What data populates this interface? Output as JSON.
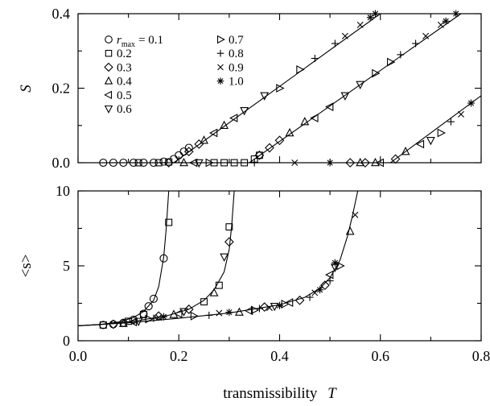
{
  "chart_data": [
    {
      "type": "scatter",
      "ylabel": "S",
      "ylim": [
        0,
        0.4
      ],
      "xlim": [
        0,
        0.8
      ],
      "yticks": [
        "0.0",
        "0.2",
        "0.4"
      ],
      "legend": {
        "title_prefix": "r",
        "title_sub": "max",
        "entries": [
          {
            "label": "= 0.1",
            "marker": "circle"
          },
          {
            "label": "0.2",
            "marker": "square"
          },
          {
            "label": "0.3",
            "marker": "diamond"
          },
          {
            "label": "0.4",
            "marker": "triangle-up"
          },
          {
            "label": "0.5",
            "marker": "triangle-left"
          },
          {
            "label": "0.6",
            "marker": "triangle-down"
          },
          {
            "label": "0.7",
            "marker": "triangle-right"
          },
          {
            "label": "0.8",
            "marker": "plus"
          },
          {
            "label": "0.9",
            "marker": "cross"
          },
          {
            "label": "1.0",
            "marker": "star"
          }
        ]
      },
      "curves": [
        {
          "x": [
            0.0,
            0.19,
            0.6
          ],
          "y": [
            0,
            0,
            0.4
          ]
        },
        {
          "x": [
            0.0,
            0.34,
            0.76
          ],
          "y": [
            0,
            0,
            0.4
          ]
        },
        {
          "x": [
            0.0,
            0.62,
            0.8
          ],
          "y": [
            0,
            0,
            0.18
          ]
        }
      ],
      "points": [
        {
          "m": "circle",
          "x": 0.05,
          "y": 0
        },
        {
          "m": "circle",
          "x": 0.07,
          "y": 0
        },
        {
          "m": "circle",
          "x": 0.09,
          "y": 0
        },
        {
          "m": "circle",
          "x": 0.11,
          "y": 0
        },
        {
          "m": "circle",
          "x": 0.13,
          "y": 0
        },
        {
          "m": "circle",
          "x": 0.15,
          "y": 0
        },
        {
          "m": "circle",
          "x": 0.17,
          "y": 0.003
        },
        {
          "m": "circle",
          "x": 0.19,
          "y": 0.01
        },
        {
          "m": "circle",
          "x": 0.2,
          "y": 0.02
        },
        {
          "m": "circle",
          "x": 0.21,
          "y": 0.03
        },
        {
          "m": "circle",
          "x": 0.22,
          "y": 0.04
        },
        {
          "m": "square",
          "x": 0.12,
          "y": 0
        },
        {
          "m": "square",
          "x": 0.16,
          "y": 0
        },
        {
          "m": "square",
          "x": 0.18,
          "y": 0.002
        },
        {
          "m": "square",
          "x": 0.27,
          "y": 0
        },
        {
          "m": "square",
          "x": 0.29,
          "y": 0
        },
        {
          "m": "square",
          "x": 0.31,
          "y": 0
        },
        {
          "m": "square",
          "x": 0.35,
          "y": 0.01
        },
        {
          "m": "square",
          "x": 0.36,
          "y": 0.02
        },
        {
          "m": "square",
          "x": 0.33,
          "y": 0
        },
        {
          "m": "diamond",
          "x": 0.18,
          "y": 0
        },
        {
          "m": "diamond",
          "x": 0.22,
          "y": 0.03
        },
        {
          "m": "diamond",
          "x": 0.24,
          "y": 0.05
        },
        {
          "m": "diamond",
          "x": 0.36,
          "y": 0.02
        },
        {
          "m": "diamond",
          "x": 0.38,
          "y": 0.04
        },
        {
          "m": "diamond",
          "x": 0.4,
          "y": 0.06
        },
        {
          "m": "diamond",
          "x": 0.54,
          "y": 0
        },
        {
          "m": "diamond",
          "x": 0.57,
          "y": 0
        },
        {
          "m": "diamond",
          "x": 0.63,
          "y": 0.01
        },
        {
          "m": "triangle-up",
          "x": 0.21,
          "y": 0
        },
        {
          "m": "triangle-up",
          "x": 0.25,
          "y": 0.06
        },
        {
          "m": "triangle-up",
          "x": 0.29,
          "y": 0.1
        },
        {
          "m": "triangle-up",
          "x": 0.42,
          "y": 0.08
        },
        {
          "m": "triangle-up",
          "x": 0.45,
          "y": 0.11
        },
        {
          "m": "triangle-up",
          "x": 0.56,
          "y": 0
        },
        {
          "m": "triangle-up",
          "x": 0.59,
          "y": 0
        },
        {
          "m": "triangle-up",
          "x": 0.65,
          "y": 0.03
        },
        {
          "m": "triangle-left",
          "x": 0.23,
          "y": 0
        },
        {
          "m": "triangle-left",
          "x": 0.27,
          "y": 0.08
        },
        {
          "m": "triangle-left",
          "x": 0.31,
          "y": 0.12
        },
        {
          "m": "triangle-left",
          "x": 0.47,
          "y": 0.12
        },
        {
          "m": "triangle-left",
          "x": 0.5,
          "y": 0.15
        },
        {
          "m": "triangle-left",
          "x": 0.6,
          "y": 0
        },
        {
          "m": "triangle-left",
          "x": 0.68,
          "y": 0.05
        },
        {
          "m": "triangle-down",
          "x": 0.24,
          "y": 0
        },
        {
          "m": "triangle-down",
          "x": 0.33,
          "y": 0.14
        },
        {
          "m": "triangle-down",
          "x": 0.37,
          "y": 0.18
        },
        {
          "m": "triangle-down",
          "x": 0.53,
          "y": 0.18
        },
        {
          "m": "triangle-down",
          "x": 0.56,
          "y": 0.21
        },
        {
          "m": "triangle-down",
          "x": 0.7,
          "y": 0.06
        },
        {
          "m": "triangle-right",
          "x": 0.26,
          "y": 0
        },
        {
          "m": "triangle-right",
          "x": 0.4,
          "y": 0.2
        },
        {
          "m": "triangle-right",
          "x": 0.44,
          "y": 0.25
        },
        {
          "m": "triangle-right",
          "x": 0.59,
          "y": 0.24
        },
        {
          "m": "triangle-right",
          "x": 0.62,
          "y": 0.27
        },
        {
          "m": "triangle-right",
          "x": 0.72,
          "y": 0.08
        },
        {
          "m": "plus",
          "x": 0.35,
          "y": 0
        },
        {
          "m": "plus",
          "x": 0.47,
          "y": 0.28
        },
        {
          "m": "plus",
          "x": 0.51,
          "y": 0.32
        },
        {
          "m": "plus",
          "x": 0.64,
          "y": 0.29
        },
        {
          "m": "plus",
          "x": 0.67,
          "y": 0.32
        },
        {
          "m": "plus",
          "x": 0.74,
          "y": 0.11
        },
        {
          "m": "cross",
          "x": 0.43,
          "y": 0
        },
        {
          "m": "cross",
          "x": 0.53,
          "y": 0.34
        },
        {
          "m": "cross",
          "x": 0.56,
          "y": 0.37
        },
        {
          "m": "cross",
          "x": 0.69,
          "y": 0.34
        },
        {
          "m": "cross",
          "x": 0.72,
          "y": 0.37
        },
        {
          "m": "cross",
          "x": 0.76,
          "y": 0.13
        },
        {
          "m": "star",
          "x": 0.5,
          "y": 0
        },
        {
          "m": "star",
          "x": 0.58,
          "y": 0.39
        },
        {
          "m": "star",
          "x": 0.59,
          "y": 0.4
        },
        {
          "m": "star",
          "x": 0.73,
          "y": 0.38
        },
        {
          "m": "star",
          "x": 0.75,
          "y": 0.4
        },
        {
          "m": "star",
          "x": 0.78,
          "y": 0.16
        }
      ]
    },
    {
      "type": "scatter",
      "ylabel": "<s>",
      "xlabel": "transmissibility",
      "xlabel_symbol": "T",
      "ylim": [
        0,
        10
      ],
      "xlim": [
        0,
        0.8
      ],
      "yticks": [
        "0",
        "5",
        "10"
      ],
      "xticks": [
        "0.0",
        "0.2",
        "0.4",
        "0.6",
        "0.8"
      ],
      "curves": [
        {
          "x": [
            0.0,
            0.04,
            0.08,
            0.11,
            0.13,
            0.15,
            0.16,
            0.17,
            0.175,
            0.18
          ],
          "y": [
            1.0,
            1.07,
            1.25,
            1.55,
            1.95,
            2.7,
            3.6,
            5.6,
            7.5,
            10
          ]
        },
        {
          "x": [
            0.0,
            0.06,
            0.12,
            0.18,
            0.22,
            0.25,
            0.27,
            0.29,
            0.3,
            0.305,
            0.31
          ],
          "y": [
            1.0,
            1.12,
            1.35,
            1.7,
            2.1,
            2.7,
            3.4,
            4.6,
            6.1,
            7.7,
            10
          ]
        },
        {
          "x": [
            0.0,
            0.1,
            0.2,
            0.3,
            0.4,
            0.45,
            0.48,
            0.5,
            0.52,
            0.535,
            0.545,
            0.555
          ],
          "y": [
            1.0,
            1.2,
            1.5,
            1.85,
            2.4,
            2.9,
            3.5,
            4.2,
            5.4,
            7.0,
            8.4,
            10
          ]
        }
      ],
      "points": [
        {
          "m": "circle",
          "x": 0.05,
          "y": 1.05
        },
        {
          "m": "circle",
          "x": 0.07,
          "y": 1.1
        },
        {
          "m": "circle",
          "x": 0.09,
          "y": 1.2
        },
        {
          "m": "circle",
          "x": 0.11,
          "y": 1.4
        },
        {
          "m": "circle",
          "x": 0.13,
          "y": 1.8
        },
        {
          "m": "circle",
          "x": 0.14,
          "y": 2.3
        },
        {
          "m": "circle",
          "x": 0.15,
          "y": 2.8
        },
        {
          "m": "circle",
          "x": 0.17,
          "y": 5.5
        },
        {
          "m": "square",
          "x": 0.05,
          "y": 1.05
        },
        {
          "m": "square",
          "x": 0.1,
          "y": 1.3
        },
        {
          "m": "square",
          "x": 0.13,
          "y": 1.75
        },
        {
          "m": "square",
          "x": 0.18,
          "y": 7.9
        },
        {
          "m": "square",
          "x": 0.25,
          "y": 2.6
        },
        {
          "m": "square",
          "x": 0.28,
          "y": 3.7
        },
        {
          "m": "square",
          "x": 0.3,
          "y": 7.6
        },
        {
          "m": "diamond",
          "x": 0.07,
          "y": 1.1
        },
        {
          "m": "diamond",
          "x": 0.16,
          "y": 1.65
        },
        {
          "m": "diamond",
          "x": 0.22,
          "y": 2.1
        },
        {
          "m": "diamond",
          "x": 0.3,
          "y": 6.6
        },
        {
          "m": "diamond",
          "x": 0.37,
          "y": 2.25
        },
        {
          "m": "diamond",
          "x": 0.44,
          "y": 2.7
        },
        {
          "m": "diamond",
          "x": 0.49,
          "y": 3.7
        },
        {
          "m": "triangle-up",
          "x": 0.09,
          "y": 1.15
        },
        {
          "m": "triangle-up",
          "x": 0.19,
          "y": 1.75
        },
        {
          "m": "triangle-up",
          "x": 0.27,
          "y": 3.2
        },
        {
          "m": "triangle-up",
          "x": 0.32,
          "y": 1.9
        },
        {
          "m": "triangle-up",
          "x": 0.54,
          "y": 7.3
        },
        {
          "m": "triangle-left",
          "x": 0.11,
          "y": 1.25
        },
        {
          "m": "triangle-left",
          "x": 0.2,
          "y": 1.8
        },
        {
          "m": "triangle-left",
          "x": 0.34,
          "y": 2.0
        },
        {
          "m": "triangle-left",
          "x": 0.42,
          "y": 2.55
        },
        {
          "m": "triangle-left",
          "x": 0.5,
          "y": 4.4
        },
        {
          "m": "triangle-down",
          "x": 0.12,
          "y": 1.3
        },
        {
          "m": "triangle-down",
          "x": 0.21,
          "y": 1.95
        },
        {
          "m": "triangle-down",
          "x": 0.29,
          "y": 5.6
        },
        {
          "m": "triangle-down",
          "x": 0.39,
          "y": 2.3
        },
        {
          "m": "triangle-down",
          "x": 0.51,
          "y": 4.9
        },
        {
          "m": "triangle-right",
          "x": 0.14,
          "y": 1.45
        },
        {
          "m": "triangle-right",
          "x": 0.23,
          "y": 1.65
        },
        {
          "m": "triangle-right",
          "x": 0.35,
          "y": 2.05
        },
        {
          "m": "triangle-right",
          "x": 0.41,
          "y": 2.45
        },
        {
          "m": "triangle-right",
          "x": 0.52,
          "y": 5.0
        },
        {
          "m": "plus",
          "x": 0.15,
          "y": 1.5
        },
        {
          "m": "plus",
          "x": 0.26,
          "y": 1.7
        },
        {
          "m": "plus",
          "x": 0.36,
          "y": 2.15
        },
        {
          "m": "plus",
          "x": 0.46,
          "y": 2.9
        },
        {
          "m": "plus",
          "x": 0.5,
          "y": 4.0
        },
        {
          "m": "cross",
          "x": 0.16,
          "y": 1.55
        },
        {
          "m": "cross",
          "x": 0.28,
          "y": 1.85
        },
        {
          "m": "cross",
          "x": 0.38,
          "y": 2.2
        },
        {
          "m": "cross",
          "x": 0.47,
          "y": 3.2
        },
        {
          "m": "cross",
          "x": 0.55,
          "y": 8.4
        },
        {
          "m": "star",
          "x": 0.17,
          "y": 1.6
        },
        {
          "m": "star",
          "x": 0.3,
          "y": 1.9
        },
        {
          "m": "star",
          "x": 0.4,
          "y": 2.35
        },
        {
          "m": "star",
          "x": 0.48,
          "y": 3.4
        },
        {
          "m": "star",
          "x": 0.51,
          "y": 5.2
        }
      ]
    }
  ]
}
